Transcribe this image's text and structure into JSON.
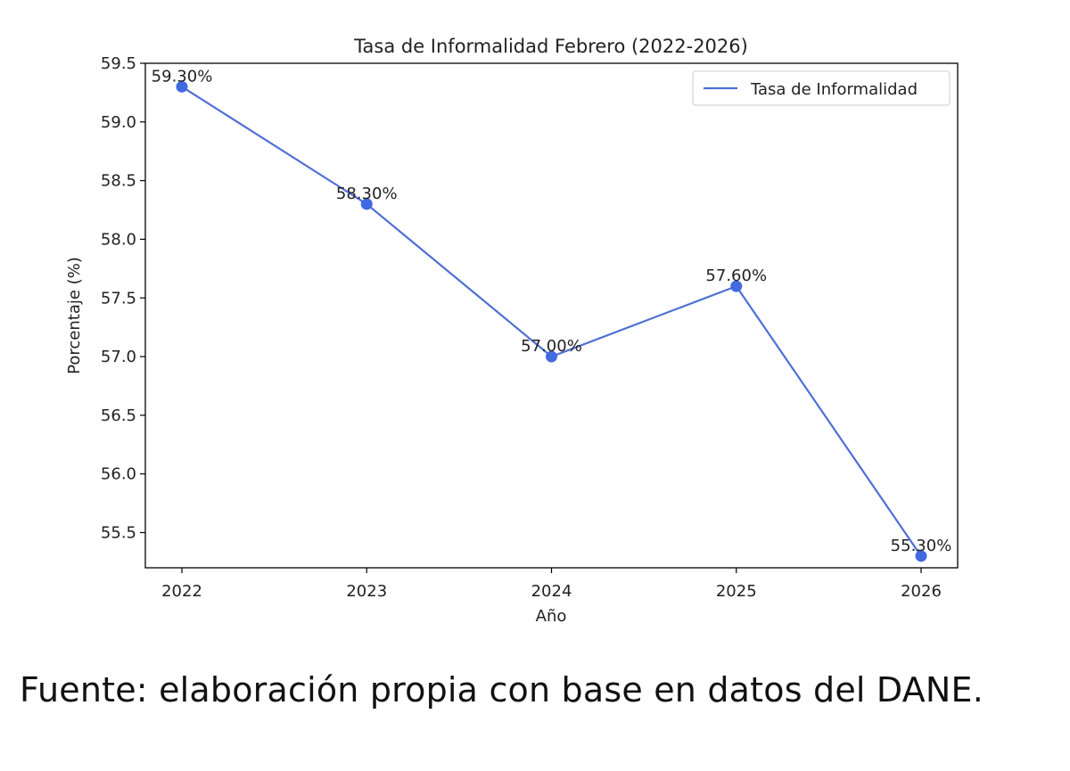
{
  "chart_data": {
    "type": "line",
    "title": "Tasa de Informalidad Febrero (2022-2026)",
    "xlabel": "Año",
    "ylabel": "Porcentaje (%)",
    "categories": [
      "2022",
      "2023",
      "2024",
      "2025",
      "2026"
    ],
    "series": [
      {
        "name": "Tasa de Informalidad",
        "values": [
          59.3,
          58.3,
          57.0,
          57.6,
          55.3
        ],
        "labels": [
          "59.30%",
          "58.30%",
          "57.00%",
          "57.60%",
          "55.30%"
        ]
      }
    ],
    "ylim": [
      55.2,
      59.5
    ],
    "yticks": [
      55.5,
      56.0,
      56.5,
      57.0,
      57.5,
      58.0,
      58.5,
      59.0,
      59.5
    ],
    "ytick_labels": [
      "55.5",
      "56.0",
      "56.5",
      "57.0",
      "57.5",
      "58.0",
      "58.5",
      "59.0",
      "59.5"
    ],
    "grid": false,
    "legend_position": "top-right",
    "colors": {
      "line": "#4f6fd6",
      "marker": "#4169e1"
    }
  },
  "caption": "Fuente: elaboración propia con base en datos del DANE."
}
